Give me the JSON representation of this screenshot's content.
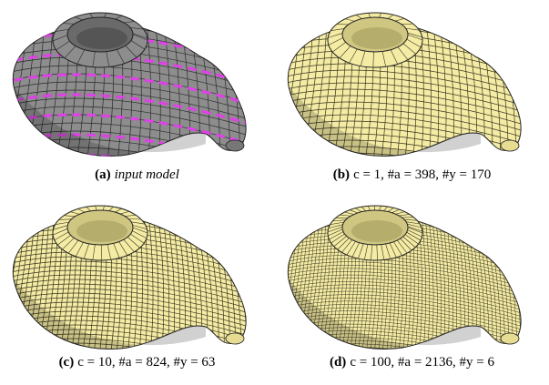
{
  "panels": [
    {
      "label": "(a)",
      "caption": "input model"
    },
    {
      "label": "(b)",
      "caption": "c = 1, #a = 398, #y = 170"
    },
    {
      "label": "(c)",
      "caption": "c = 10, #a = 824, #y = 63"
    },
    {
      "label": "(d)",
      "caption": "c = 100, #a = 2136, #y = 6"
    }
  ]
}
